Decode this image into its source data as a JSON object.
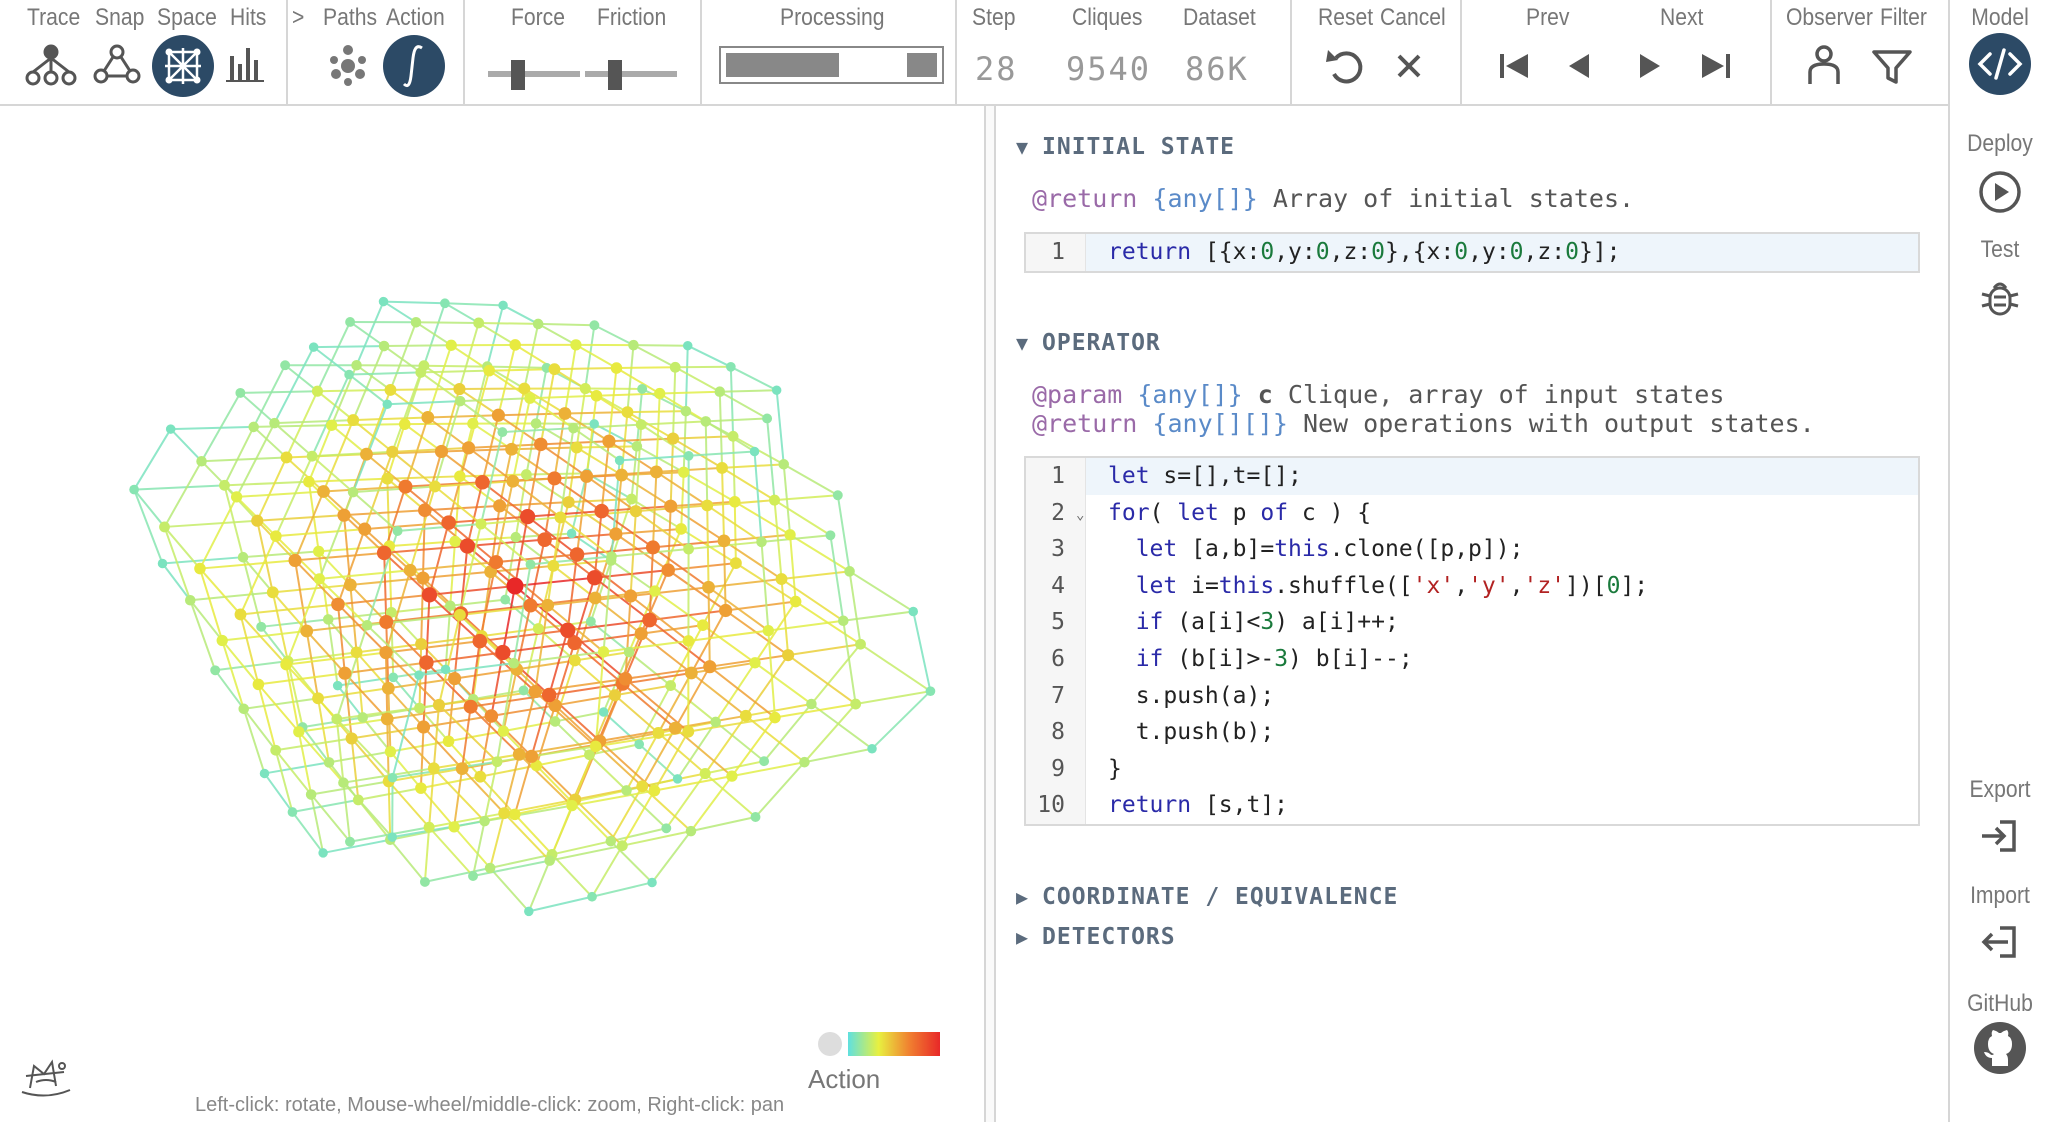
{
  "toolbar": {
    "labels": {
      "trace": "Trace",
      "snap": "Snap",
      "space": "Space",
      "hits": "Hits",
      "gt": ">",
      "paths": "Paths",
      "action": "Action",
      "force": "Force",
      "friction": "Friction",
      "processing": "Processing",
      "step": "Step",
      "cliques": "Cliques",
      "dataset": "Dataset",
      "reset": "Reset",
      "cancel": "Cancel",
      "prev": "Prev",
      "next": "Next",
      "observer": "Observer",
      "filter": "Filter"
    },
    "step_value": "28",
    "cliques_value": "9540",
    "dataset_value": "86K",
    "processing_progress": 0.5,
    "force_slider": 0.3,
    "friction_slider": 0.3,
    "active_color": "#2c4a66"
  },
  "sidebar": {
    "model": "Model",
    "deploy": "Deploy",
    "test": "Test",
    "export": "Export",
    "import": "Import",
    "github": "GitHub"
  },
  "viz": {
    "hint": "Left-click: rotate, Mouse-wheel/middle-click: zoom, Right-click: pan",
    "legend_label": "Action",
    "gradient_colors": [
      "#5fe0e0",
      "#e8f040",
      "#f08030",
      "#e82828"
    ]
  },
  "editor": {
    "initial_state": {
      "title": "INITIAL STATE",
      "doc_tag": "@return",
      "doc_type": "{any[]}",
      "doc_text": " Array of initial states.",
      "lines": [
        {
          "num": "1",
          "code": "return [{x:0,y:0,z:0},{x:0,y:0,z:0}];"
        }
      ]
    },
    "operator": {
      "title": "OPERATOR",
      "doc1_tag": "@param",
      "doc1_type": "{any[]}",
      "doc1_name": " c",
      "doc1_text": " Clique, array of input states",
      "doc2_tag": "@return",
      "doc2_type": "{any[][]}",
      "doc2_text": " New operations with output states.",
      "lines": [
        {
          "num": "1",
          "code": "let s=[],t=[];"
        },
        {
          "num": "2",
          "code": "for( let p of c ) {"
        },
        {
          "num": "3",
          "code": "  let [a,b]=this.clone([p,p]);"
        },
        {
          "num": "4",
          "code": "  let i=this.shuffle(['x','y','z'])[0];"
        },
        {
          "num": "5",
          "code": "  if (a[i]<3) a[i]++;"
        },
        {
          "num": "6",
          "code": "  if (b[i]>-3) b[i]--;"
        },
        {
          "num": "7",
          "code": "  s.push(a);"
        },
        {
          "num": "8",
          "code": "  t.push(b);"
        },
        {
          "num": "9",
          "code": "}"
        },
        {
          "num": "10",
          "code": "return [s,t];"
        }
      ]
    },
    "coordinate": {
      "title": "COORDINATE / EQUIVALENCE"
    },
    "detectors": {
      "title": "DETECTORS"
    }
  }
}
